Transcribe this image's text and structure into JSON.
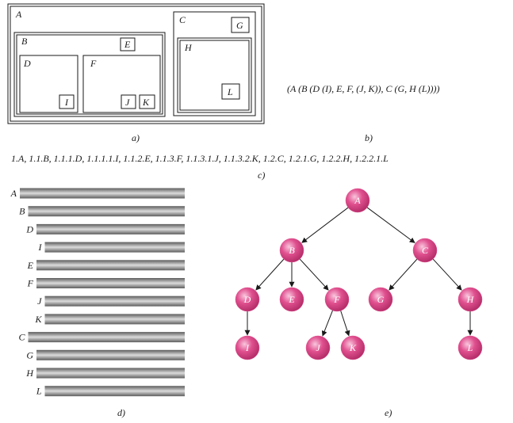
{
  "panel_a": {
    "caption": "a)",
    "labels": {
      "A": "A",
      "B": "B",
      "C": "C",
      "D": "D",
      "E": "E",
      "F": "F",
      "G": "G",
      "H": "H",
      "I": "I",
      "J": "J",
      "K": "K",
      "L": "L"
    }
  },
  "panel_b": {
    "caption": "b)",
    "text": "(A (B (D (I), E, F, (J, K)), C (G, H (L))))"
  },
  "panel_c": {
    "caption": "c)",
    "text": "1.A, 1.1.B, 1.1.1.D, 1.1.1.1.I, 1.1.2.E, 1.1.3.F, 1.1.3.1.J, 1.1.3.2.K, 1.2.C, 1.2.1.G, 1.2.2.H, 1.2.2.1.L"
  },
  "panel_d": {
    "caption": "d)",
    "rows": [
      {
        "label": "A",
        "depth": 0
      },
      {
        "label": "B",
        "depth": 1
      },
      {
        "label": "D",
        "depth": 2
      },
      {
        "label": "I",
        "depth": 3
      },
      {
        "label": "E",
        "depth": 2
      },
      {
        "label": "F",
        "depth": 2
      },
      {
        "label": "J",
        "depth": 3
      },
      {
        "label": "K",
        "depth": 3
      },
      {
        "label": "C",
        "depth": 1
      },
      {
        "label": "G",
        "depth": 2
      },
      {
        "label": "H",
        "depth": 2
      },
      {
        "label": "L",
        "depth": 3
      }
    ]
  },
  "panel_e": {
    "caption": "e)",
    "node_color": "#e0508f",
    "nodes": [
      {
        "id": "A",
        "label": "A"
      },
      {
        "id": "B",
        "label": "B"
      },
      {
        "id": "C",
        "label": "C"
      },
      {
        "id": "D",
        "label": "D"
      },
      {
        "id": "E",
        "label": "E"
      },
      {
        "id": "F",
        "label": "F"
      },
      {
        "id": "G",
        "label": "G"
      },
      {
        "id": "H",
        "label": "H"
      },
      {
        "id": "I",
        "label": "I"
      },
      {
        "id": "J",
        "label": "J"
      },
      {
        "id": "K",
        "label": "K"
      },
      {
        "id": "L",
        "label": "L"
      }
    ],
    "edges": [
      {
        "from": "A",
        "to": "B"
      },
      {
        "from": "A",
        "to": "C"
      },
      {
        "from": "B",
        "to": "D"
      },
      {
        "from": "B",
        "to": "E"
      },
      {
        "from": "B",
        "to": "F"
      },
      {
        "from": "C",
        "to": "G"
      },
      {
        "from": "C",
        "to": "H"
      },
      {
        "from": "D",
        "to": "I"
      },
      {
        "from": "F",
        "to": "J"
      },
      {
        "from": "F",
        "to": "K"
      },
      {
        "from": "H",
        "to": "L"
      }
    ]
  }
}
